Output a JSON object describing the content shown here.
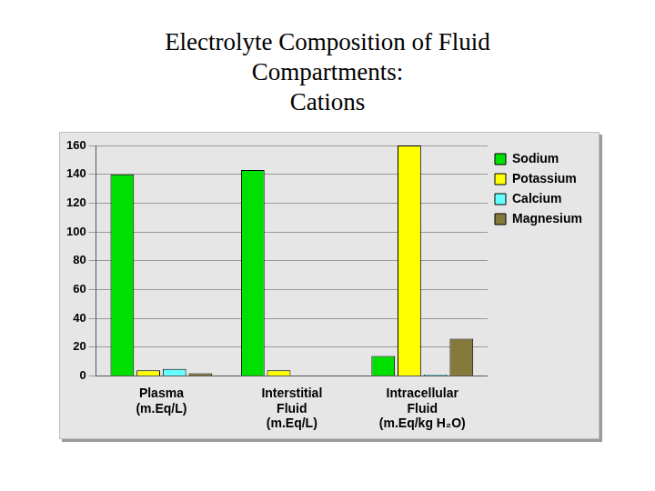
{
  "chart_data": {
    "type": "bar",
    "title": [
      "Electrolyte Composition of Fluid",
      "Compartments:",
      "Cations"
    ],
    "categories": [
      "Plasma",
      "Interstitial Fluid",
      "Intracellular Fluid"
    ],
    "category_units": [
      "(m.Eq/L)",
      "(m.Eq/L)",
      "(m.Eq/kg H₂O)"
    ],
    "series": [
      {
        "name": "Sodium",
        "color": "#00e000",
        "values": [
          140,
          143,
          14
        ]
      },
      {
        "name": "Potassium",
        "color": "#ffff00",
        "values": [
          4,
          4,
          160
        ]
      },
      {
        "name": "Calcium",
        "color": "#66ffff",
        "values": [
          5,
          0,
          1
        ]
      },
      {
        "name": "Magnesium",
        "color": "#857a3c",
        "values": [
          2,
          0,
          26
        ]
      }
    ],
    "ylim": [
      0,
      160
    ],
    "yticks": [
      0,
      20,
      40,
      60,
      80,
      100,
      120,
      140,
      160
    ],
    "grid": true,
    "legend": "right"
  }
}
